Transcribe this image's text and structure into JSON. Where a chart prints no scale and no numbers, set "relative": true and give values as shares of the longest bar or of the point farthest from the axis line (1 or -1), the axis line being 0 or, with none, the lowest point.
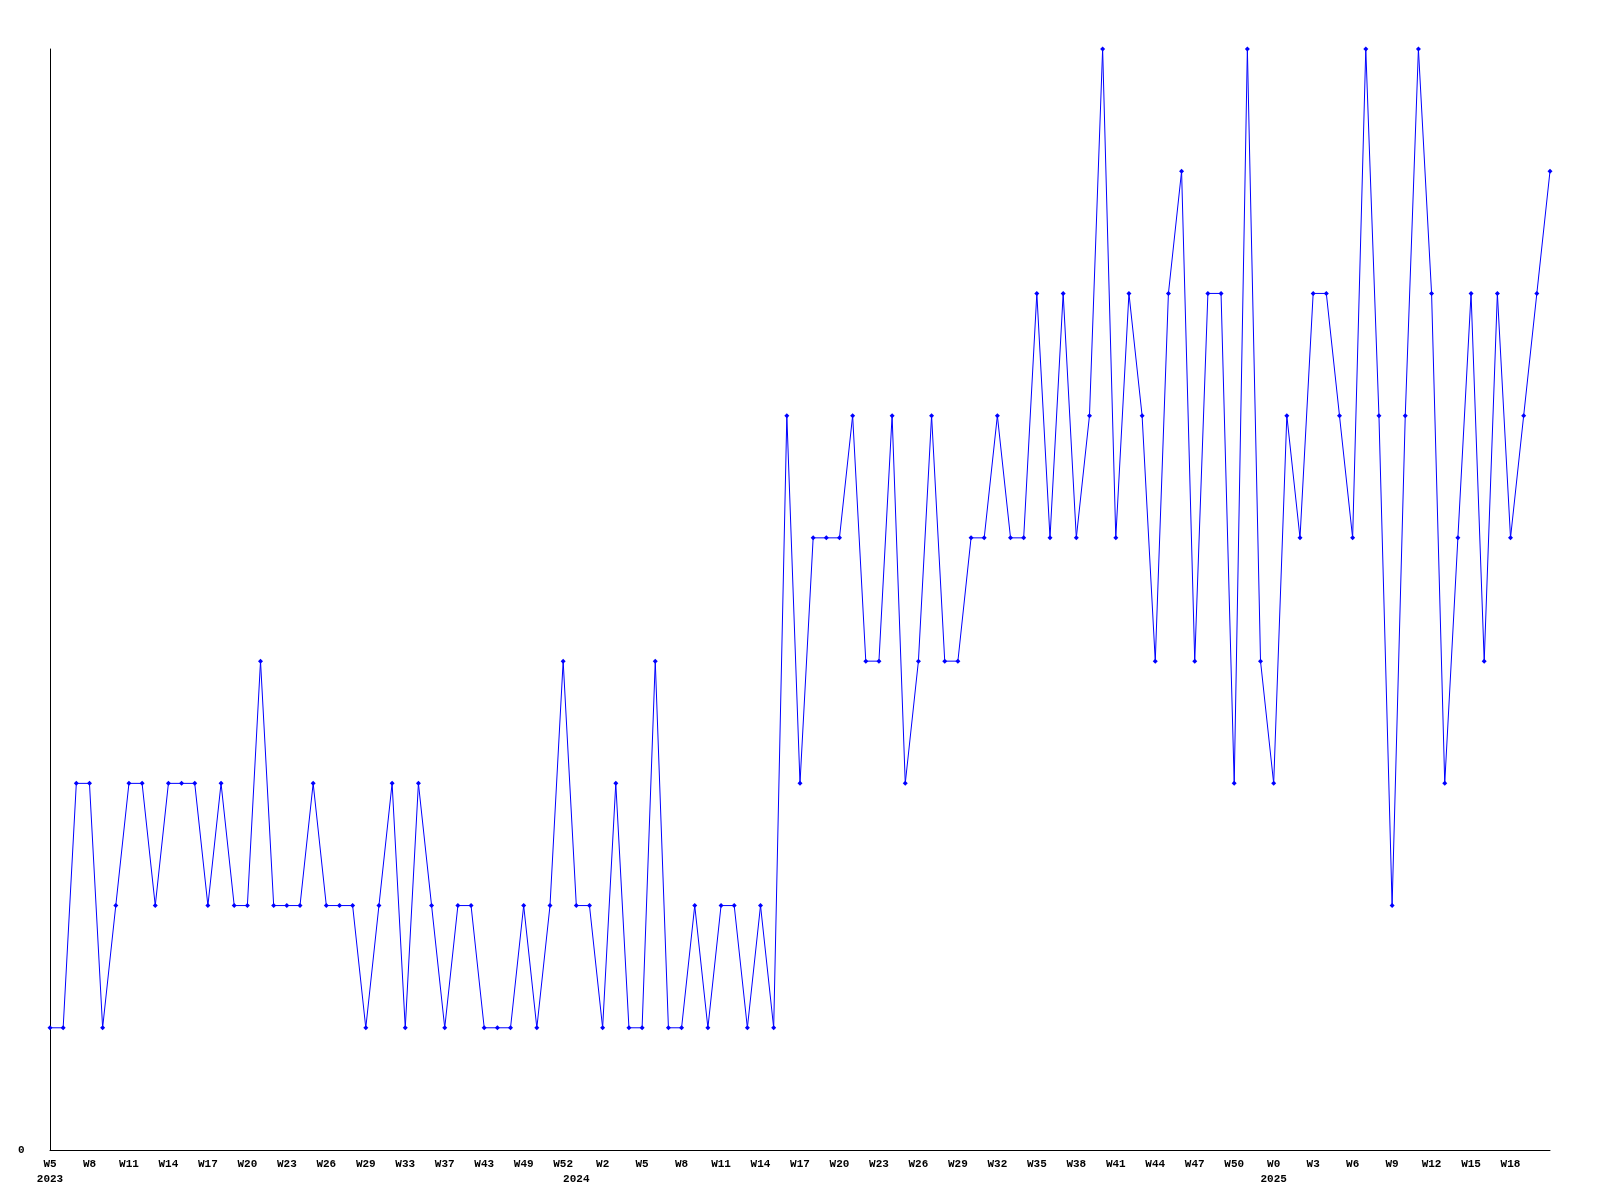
{
  "chart_data": {
    "type": "line",
    "relative": true,
    "marker": "diamond",
    "categories": [
      "W5\n2023",
      null,
      null,
      "W8",
      null,
      null,
      "W11",
      null,
      null,
      "W14",
      null,
      null,
      "W17",
      null,
      null,
      "W20",
      null,
      null,
      "W23",
      null,
      null,
      "W26",
      null,
      null,
      "W29",
      null,
      null,
      "W33",
      null,
      null,
      "W37",
      null,
      null,
      "W43",
      null,
      null,
      "W49",
      null,
      null,
      "W52",
      "\n2024",
      null,
      "W2",
      null,
      null,
      "W5",
      null,
      null,
      "W8",
      null,
      null,
      "W11",
      null,
      null,
      "W14",
      null,
      null,
      "W17",
      null,
      null,
      "W20",
      null,
      null,
      "W23",
      null,
      null,
      "W26",
      null,
      null,
      "W29",
      null,
      null,
      "W32",
      null,
      null,
      "W35",
      null,
      null,
      "W38",
      null,
      null,
      "W41",
      null,
      null,
      "W44",
      null,
      null,
      "W47",
      null,
      null,
      "W50",
      null,
      null,
      "W0\n2025",
      null,
      null,
      "W3",
      null,
      null,
      "W6",
      null,
      null,
      "W9",
      null,
      null,
      "W12",
      null,
      null,
      "W15",
      null,
      null,
      "W18",
      null,
      null,
      null
    ],
    "series": [
      {
        "color": "#0000ff",
        "values": [
          0.111,
          0.111,
          0.333,
          0.333,
          0.111,
          0.222,
          0.333,
          0.333,
          0.222,
          0.333,
          0.333,
          0.333,
          0.222,
          0.333,
          0.222,
          0.222,
          0.444,
          0.222,
          0.222,
          0.222,
          0.333,
          0.222,
          0.222,
          0.222,
          0.111,
          0.222,
          0.333,
          0.111,
          0.333,
          0.222,
          0.111,
          0.222,
          0.222,
          0.111,
          0.111,
          0.111,
          0.222,
          0.111,
          0.222,
          0.444,
          0.222,
          0.222,
          0.111,
          0.333,
          0.111,
          0.111,
          0.444,
          0.111,
          0.111,
          0.222,
          0.111,
          0.222,
          0.222,
          0.111,
          0.222,
          0.111,
          0.667,
          0.333,
          0.556,
          0.556,
          0.556,
          0.667,
          0.444,
          0.444,
          0.667,
          0.333,
          0.444,
          0.667,
          0.444,
          0.444,
          0.556,
          0.556,
          0.667,
          0.556,
          0.556,
          0.778,
          0.556,
          0.778,
          0.556,
          0.667,
          1,
          0.556,
          0.778,
          0.667,
          0.444,
          0.778,
          0.889,
          0.444,
          0.778,
          0.778,
          0.333,
          1,
          0.444,
          0.333,
          0.667,
          0.556,
          0.778,
          0.778,
          0.667,
          0.556,
          1,
          0.667,
          0.222,
          0.667,
          1,
          0.778,
          0.333,
          0.556,
          0.778,
          0.444,
          0.778,
          0.556,
          0.667,
          0.778,
          0.889
        ]
      }
    ],
    "annotations": [
      "0"
    ]
  }
}
